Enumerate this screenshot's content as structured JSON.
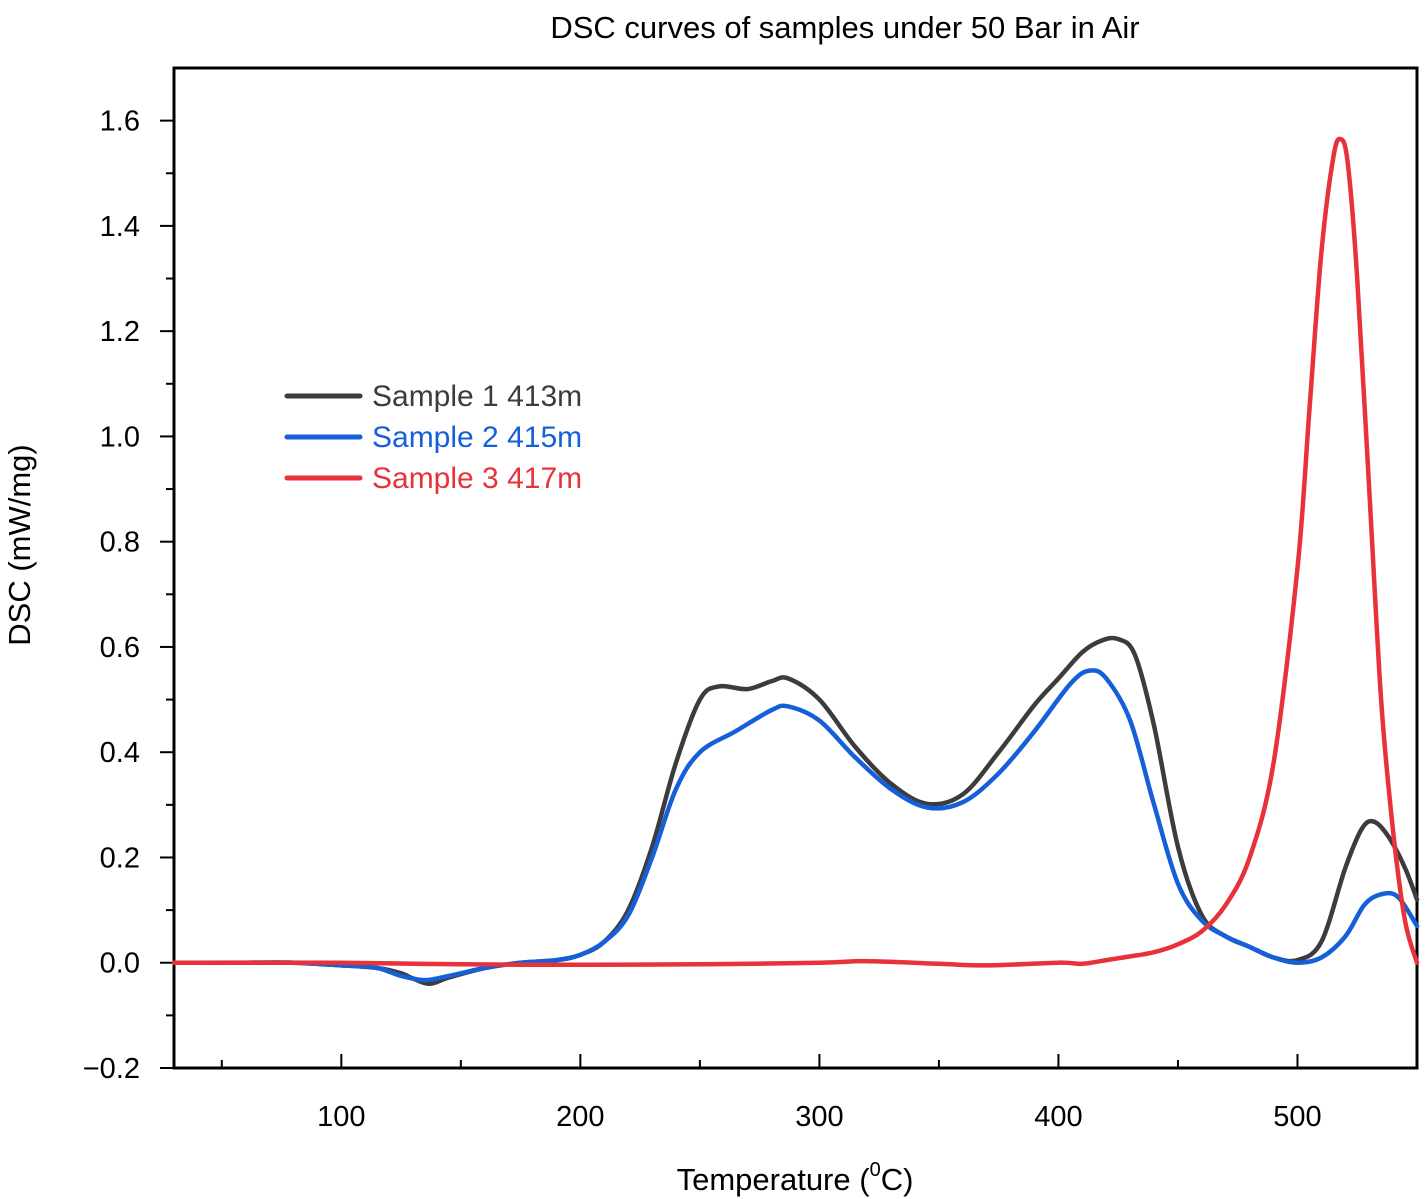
{
  "chart_data": {
    "type": "line",
    "title": "DSC curves of samples under 50 Bar in Air",
    "xlabel": "Temperature (",
    "xlabel_sup": "0",
    "xlabel_end": "C)",
    "ylabel": "DSC (mW/mg)",
    "xlim": [
      30,
      550
    ],
    "ylim": [
      -0.2,
      1.7
    ],
    "xticks": [
      100,
      200,
      300,
      400,
      500
    ],
    "xtick_labels": [
      "100",
      "200",
      "300",
      "400",
      "500"
    ],
    "yticks": [
      -0.2,
      0.0,
      0.2,
      0.4,
      0.6,
      0.8,
      1.0,
      1.2,
      1.4,
      1.6
    ],
    "ytick_labels": [
      "−0.2",
      "0.0",
      "0.2",
      "0.4",
      "0.6",
      "0.8",
      "1.0",
      "1.2",
      "1.4",
      "1.6"
    ],
    "legend_position": "upper-left",
    "series": [
      {
        "name": "Sample 1 413m",
        "color": "#3c3c3c",
        "x": [
          30,
          60,
          80,
          100,
          115,
          125,
          130,
          137,
          145,
          160,
          175,
          190,
          200,
          210,
          220,
          230,
          240,
          250,
          258,
          270,
          280,
          287,
          300,
          315,
          330,
          345,
          360,
          375,
          390,
          400,
          410,
          418,
          425,
          432,
          440,
          450,
          460,
          470,
          480,
          490,
          500,
          510,
          520,
          527,
          532,
          538,
          545,
          550
        ],
        "y": [
          0.0,
          0.0,
          0.0,
          -0.005,
          -0.01,
          -0.02,
          -0.03,
          -0.04,
          -0.028,
          -0.01,
          0.0,
          0.005,
          0.015,
          0.04,
          0.1,
          0.22,
          0.38,
          0.5,
          0.525,
          0.52,
          0.535,
          0.54,
          0.5,
          0.41,
          0.34,
          0.302,
          0.32,
          0.4,
          0.49,
          0.54,
          0.59,
          0.612,
          0.615,
          0.585,
          0.45,
          0.22,
          0.09,
          0.05,
          0.03,
          0.01,
          0.005,
          0.04,
          0.18,
          0.255,
          0.268,
          0.24,
          0.18,
          0.12
        ]
      },
      {
        "name": "Sample 2 415m",
        "color": "#1560d8",
        "x": [
          30,
          60,
          80,
          100,
          115,
          125,
          135,
          145,
          160,
          175,
          190,
          200,
          210,
          220,
          230,
          240,
          250,
          265,
          280,
          287,
          300,
          315,
          330,
          345,
          360,
          375,
          390,
          405,
          413,
          420,
          430,
          440,
          450,
          460,
          470,
          480,
          490,
          500,
          510,
          520,
          528,
          535,
          542,
          550
        ],
        "y": [
          0.0,
          0.0,
          0.0,
          -0.005,
          -0.01,
          -0.025,
          -0.033,
          -0.025,
          -0.01,
          0.0,
          0.005,
          0.015,
          0.04,
          0.09,
          0.2,
          0.33,
          0.4,
          0.44,
          0.48,
          0.487,
          0.46,
          0.39,
          0.33,
          0.295,
          0.305,
          0.36,
          0.44,
          0.53,
          0.555,
          0.54,
          0.46,
          0.3,
          0.15,
          0.08,
          0.05,
          0.03,
          0.01,
          0.0,
          0.01,
          0.05,
          0.11,
          0.13,
          0.125,
          0.07
        ]
      },
      {
        "name": "Sample 3 417m",
        "color": "#e8323a",
        "x": [
          30,
          100,
          150,
          200,
          250,
          300,
          320,
          350,
          370,
          400,
          410,
          420,
          430,
          440,
          450,
          460,
          470,
          480,
          490,
          500,
          505,
          510,
          515,
          518,
          521,
          525,
          530,
          535,
          540,
          545,
          550
        ],
        "y": [
          0.0,
          0.0,
          -0.003,
          -0.004,
          -0.003,
          0.0,
          0.003,
          -0.002,
          -0.005,
          0.0,
          -0.002,
          0.005,
          0.012,
          0.02,
          0.035,
          0.06,
          0.11,
          0.2,
          0.38,
          0.75,
          1.05,
          1.35,
          1.53,
          1.565,
          1.52,
          1.3,
          0.9,
          0.5,
          0.25,
          0.08,
          0.0
        ]
      }
    ]
  }
}
